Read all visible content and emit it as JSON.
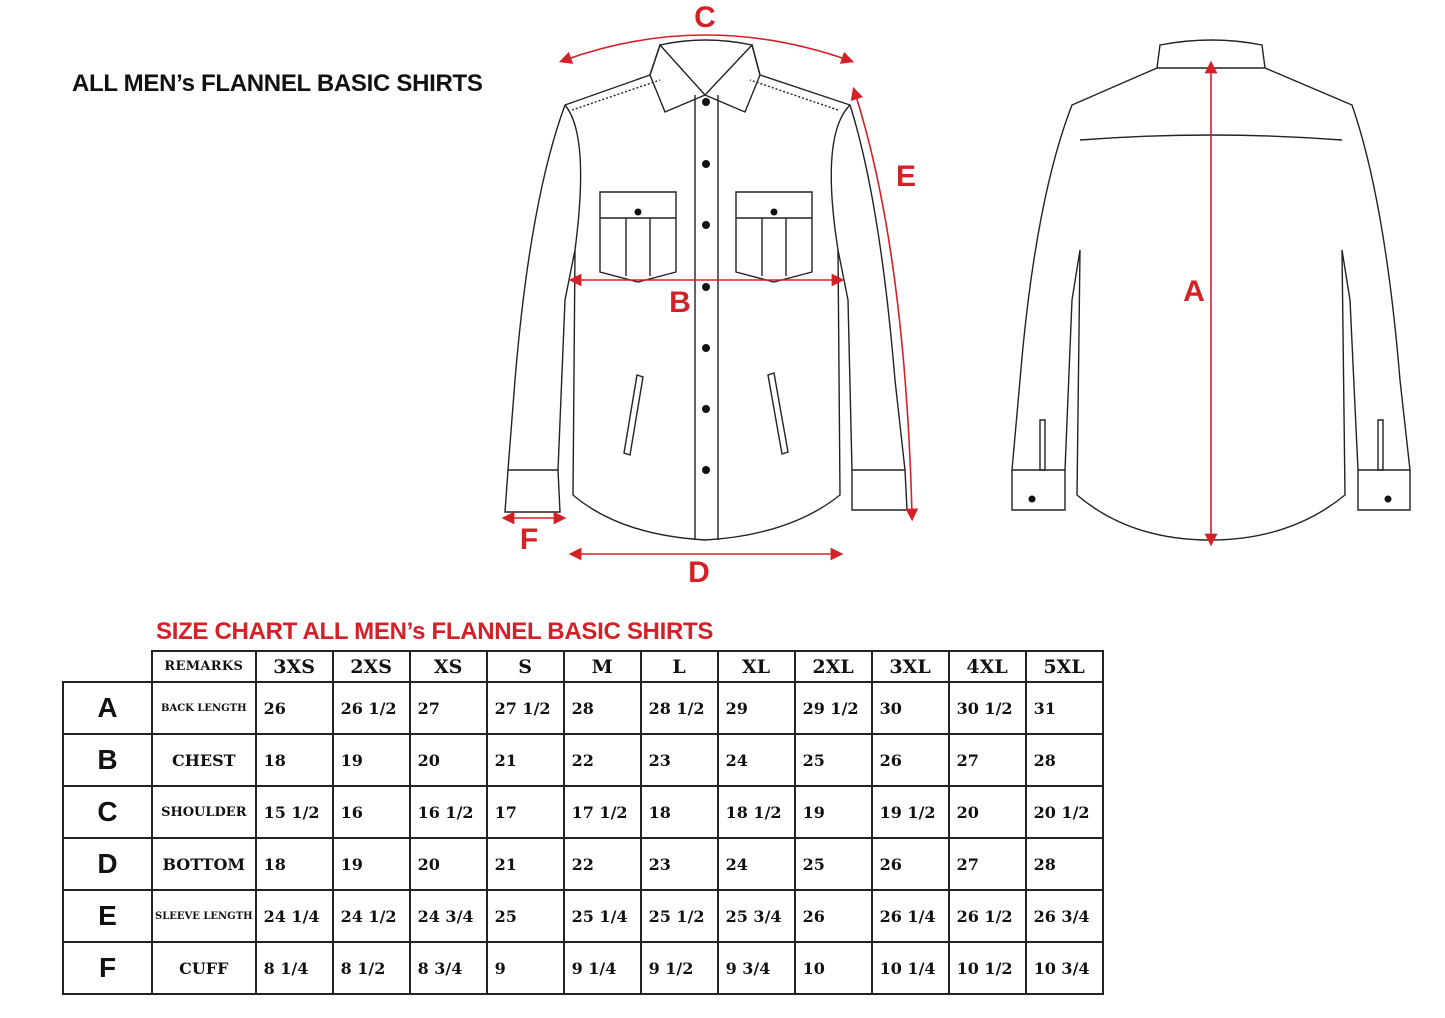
{
  "title": "ALL MEN’s FLANNEL BASIC SHIRTS",
  "chart_title": "SIZE CHART ALL MEN’s FLANNEL BASIC SHIRTS",
  "accent_color": "#d42027",
  "diagram_labels": {
    "A": "A",
    "B": "B",
    "C": "C",
    "D": "D",
    "E": "E",
    "F": "F"
  },
  "table": {
    "remarks_header": "REMARKS",
    "sizes": [
      "3XS",
      "2XS",
      "XS",
      "S",
      "M",
      "L",
      "XL",
      "2XL",
      "3XL",
      "4XL",
      "5XL"
    ],
    "rows": [
      {
        "letter": "A",
        "remark": "BACK LENGTH",
        "values": [
          "26",
          "26 1/2",
          "27",
          "27 1/2",
          "28",
          "28 1/2",
          "29",
          "29 1/2",
          "30",
          "30 1/2",
          "31"
        ]
      },
      {
        "letter": "B",
        "remark": "CHEST",
        "values": [
          "18",
          "19",
          "20",
          "21",
          "22",
          "23",
          "24",
          "25",
          "26",
          "27",
          "28"
        ]
      },
      {
        "letter": "C",
        "remark": "SHOULDER",
        "values": [
          "15 1/2",
          "16",
          "16 1/2",
          "17",
          "17 1/2",
          "18",
          "18 1/2",
          "19",
          "19 1/2",
          "20",
          "20 1/2"
        ]
      },
      {
        "letter": "D",
        "remark": "BOTTOM",
        "values": [
          "18",
          "19",
          "20",
          "21",
          "22",
          "23",
          "24",
          "25",
          "26",
          "27",
          "28"
        ]
      },
      {
        "letter": "E",
        "remark": "SLEEVE LENGTH",
        "values": [
          "24 1/4",
          "24 1/2",
          "24 3/4",
          "25",
          "25 1/4",
          "25 1/2",
          "25 3/4",
          "26",
          "26 1/4",
          "26 1/2",
          "26 3/4"
        ]
      },
      {
        "letter": "F",
        "remark": "CUFF",
        "values": [
          "8 1/4",
          "8 1/2",
          "8 3/4",
          "9",
          "9 1/4",
          "9 1/2",
          "9 3/4",
          "10",
          "10 1/4",
          "10 1/2",
          "10 3/4"
        ]
      }
    ]
  }
}
